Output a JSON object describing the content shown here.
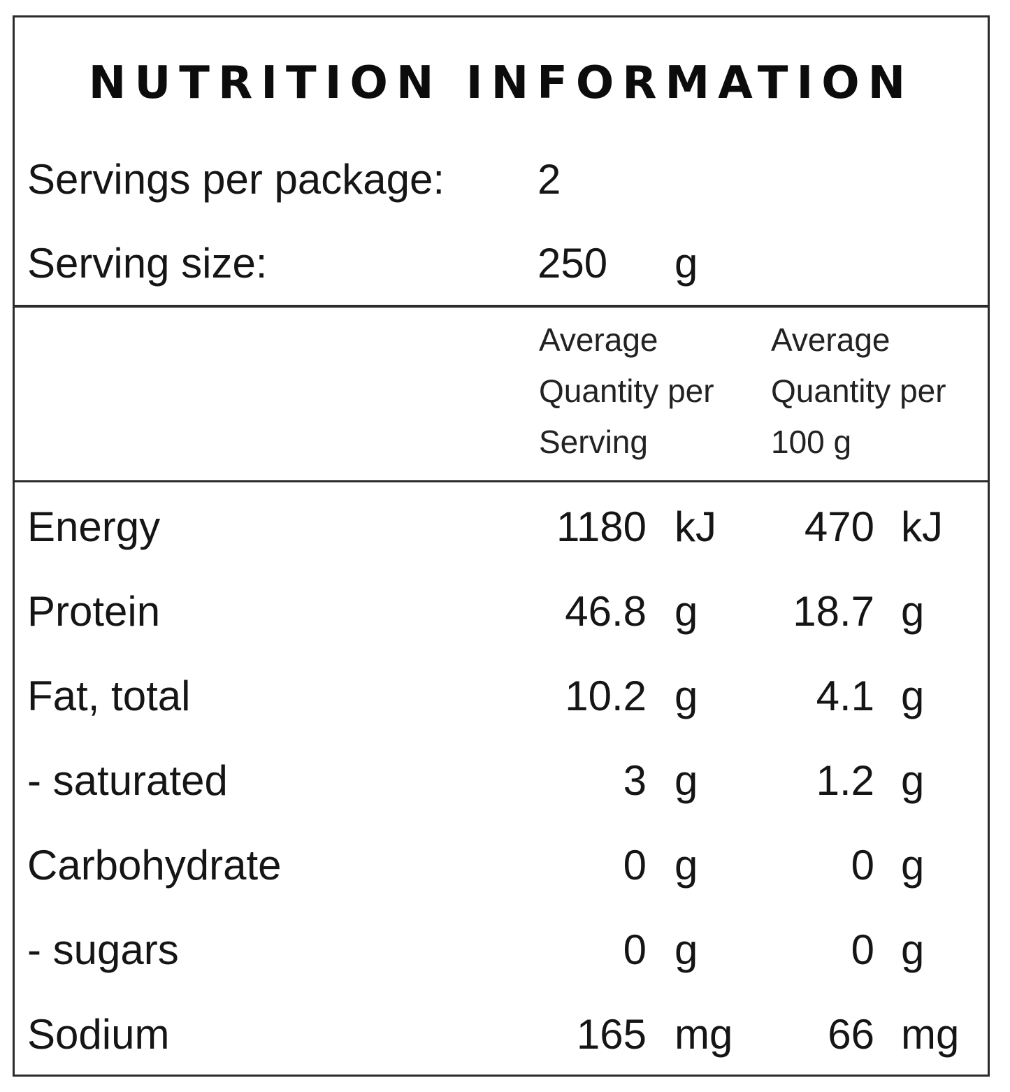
{
  "title": "NUTRITION INFORMATION",
  "servings_per_package": {
    "label": "Servings per package:",
    "value": "2"
  },
  "serving_size": {
    "label": "Serving size:",
    "value": "250",
    "unit": "g"
  },
  "columns": {
    "per_serving": [
      "Average",
      "Quantity per",
      "Serving"
    ],
    "per_100g": [
      "Average",
      "Quantity per",
      "100 g"
    ]
  },
  "rows": [
    {
      "name": "Energy",
      "serving": "1180",
      "serving_unit": "kJ",
      "per100": "470",
      "per100_unit": "kJ"
    },
    {
      "name": "Protein",
      "serving": "46.8",
      "serving_unit": "g",
      "per100": "18.7",
      "per100_unit": "g"
    },
    {
      "name": "Fat, total",
      "serving": "10.2",
      "serving_unit": "g",
      "per100": "4.1",
      "per100_unit": "g"
    },
    {
      "name": "- saturated",
      "serving": "3",
      "serving_unit": "g",
      "per100": "1.2",
      "per100_unit": "g"
    },
    {
      "name": "Carbohydrate",
      "serving": "0",
      "serving_unit": "g",
      "per100": "0",
      "per100_unit": "g"
    },
    {
      "name": "- sugars",
      "serving": "0",
      "serving_unit": "g",
      "per100": "0",
      "per100_unit": "g"
    },
    {
      "name": "Sodium",
      "serving": "165",
      "serving_unit": "mg",
      "per100": "66",
      "per100_unit": "mg"
    }
  ]
}
